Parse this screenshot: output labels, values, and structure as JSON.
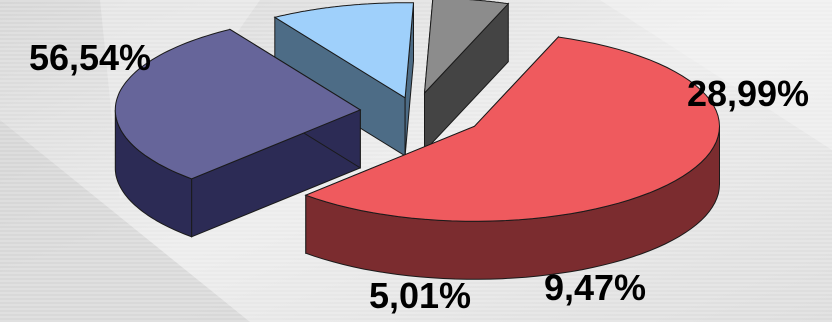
{
  "chart_data": {
    "type": "pie",
    "style": "3d-exploded",
    "slices": [
      {
        "label": "56,54%",
        "value": 56.54,
        "color": "#ef5a5e",
        "side_color": "#7b2c2f"
      },
      {
        "label": "28,99%",
        "value": 28.99,
        "color": "#66659a",
        "side_color": "#2c2b55"
      },
      {
        "label": "9,47%",
        "value": 9.47,
        "color": "#9fd0fb",
        "side_color": "#4d6c86"
      },
      {
        "label": "5,01%",
        "value": 5.01,
        "color": "#8c8c8c",
        "side_color": "#444444"
      }
    ],
    "label_color": "#000000",
    "background": "#e6e6e6"
  }
}
